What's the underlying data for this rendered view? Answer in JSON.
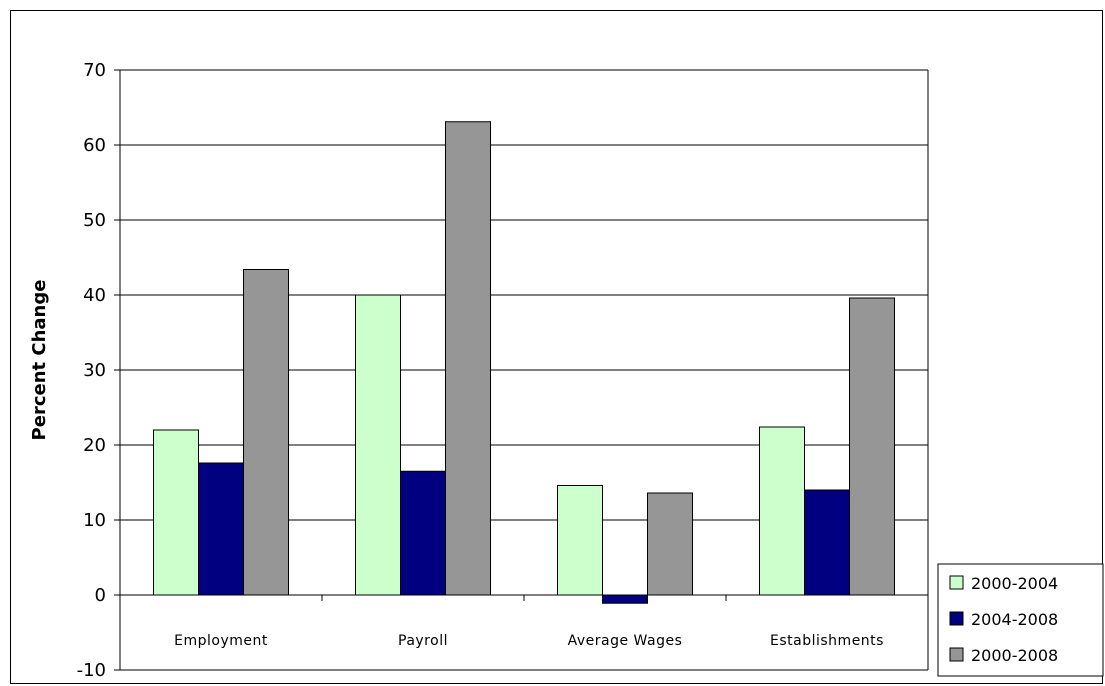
{
  "chart_data": {
    "type": "bar",
    "title": "",
    "xlabel": "",
    "ylabel": "Percent Change",
    "ylim": [
      -10,
      70
    ],
    "yticks": [
      -10,
      0,
      10,
      20,
      30,
      40,
      50,
      60,
      70
    ],
    "grid": true,
    "legend_position": "bottom-right",
    "categories": [
      "Employment",
      "Payroll",
      "Average Wages",
      "Establishments"
    ],
    "series": [
      {
        "name": "2000-2004",
        "color": "#ccffcc",
        "values": [
          22.0,
          40.0,
          14.6,
          22.4
        ]
      },
      {
        "name": "2004-2008",
        "color": "#000080",
        "values": [
          17.6,
          16.5,
          -1.1,
          14.0
        ]
      },
      {
        "name": "2000-2008",
        "color": "#969696",
        "values": [
          43.4,
          63.1,
          13.6,
          39.6
        ]
      }
    ]
  }
}
